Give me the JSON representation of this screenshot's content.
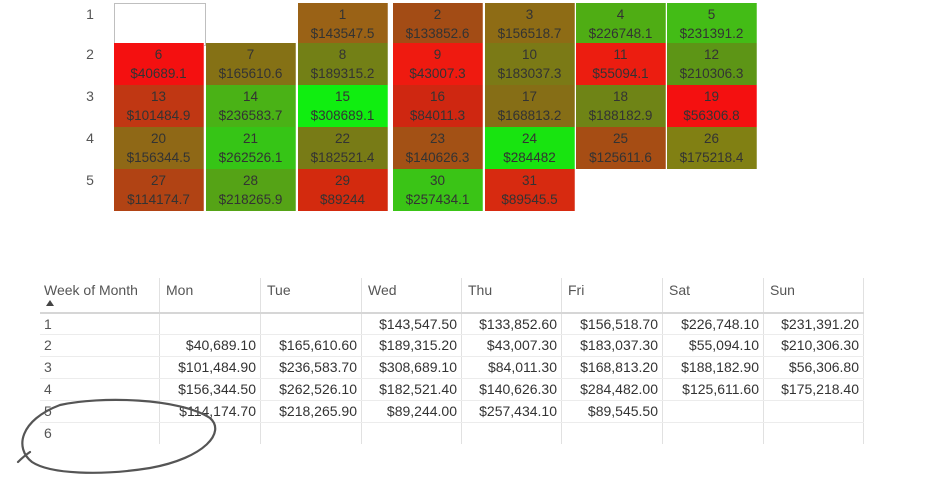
{
  "calendar": {
    "weeks": [
      {
        "label": "1",
        "days": [
          {
            "col": 0,
            "blank": true
          },
          {
            "col": 2,
            "day": "1",
            "amount": "$143547.5",
            "color": "#9a6216"
          },
          {
            "col": 3,
            "day": "2",
            "amount": "$133852.6",
            "color": "#a34c15"
          },
          {
            "col": 4,
            "day": "3",
            "amount": "$156518.7",
            "color": "#8e6c15"
          },
          {
            "col": 5,
            "day": "4",
            "amount": "$226748.1",
            "color": "#4fad14"
          },
          {
            "col": 6,
            "day": "5",
            "amount": "$231391.2",
            "color": "#43bc16"
          }
        ]
      },
      {
        "label": "2",
        "days": [
          {
            "col": 0,
            "day": "6",
            "amount": "$40689.1",
            "color": "#f41010"
          },
          {
            "col": 1,
            "day": "7",
            "amount": "$165610.6",
            "color": "#857115"
          },
          {
            "col": 2,
            "day": "8",
            "amount": "$189315.2",
            "color": "#738016"
          },
          {
            "col": 3,
            "day": "9",
            "amount": "$43007.3",
            "color": "#ef1a10"
          },
          {
            "col": 4,
            "day": "10",
            "amount": "$183037.3",
            "color": "#7b7a16"
          },
          {
            "col": 5,
            "day": "11",
            "amount": "$55094.1",
            "color": "#ec1d10"
          },
          {
            "col": 6,
            "day": "12",
            "amount": "$210306.3",
            "color": "#5d9516"
          }
        ]
      },
      {
        "label": "3",
        "days": [
          {
            "col": 0,
            "day": "13",
            "amount": "$101484.9",
            "color": "#c03713"
          },
          {
            "col": 1,
            "day": "14",
            "amount": "$236583.7",
            "color": "#4ab216"
          },
          {
            "col": 2,
            "day": "15",
            "amount": "$308689.1",
            "color": "#10ee10"
          },
          {
            "col": 3,
            "day": "16",
            "amount": "$84011.3",
            "color": "#cf2711"
          },
          {
            "col": 4,
            "day": "17",
            "amount": "$168813.2",
            "color": "#866e16"
          },
          {
            "col": 5,
            "day": "18",
            "amount": "$188182.9",
            "color": "#6f8416"
          },
          {
            "col": 6,
            "day": "19",
            "amount": "$56306.8",
            "color": "#f41010"
          }
        ]
      },
      {
        "label": "4",
        "days": [
          {
            "col": 0,
            "day": "20",
            "amount": "$156344.5",
            "color": "#8f6816"
          },
          {
            "col": 1,
            "day": "21",
            "amount": "$262526.1",
            "color": "#36c516"
          },
          {
            "col": 2,
            "day": "22",
            "amount": "$182521.4",
            "color": "#787b16"
          },
          {
            "col": 3,
            "day": "23",
            "amount": "$140626.3",
            "color": "#a35115"
          },
          {
            "col": 4,
            "day": "24",
            "amount": "$284482",
            "color": "#18e410"
          },
          {
            "col": 5,
            "day": "25",
            "amount": "$125611.6",
            "color": "#a64d14"
          },
          {
            "col": 6,
            "day": "26",
            "amount": "$175218.4",
            "color": "#818013"
          }
        ]
      },
      {
        "label": "5",
        "days": [
          {
            "col": 0,
            "day": "27",
            "amount": "$114174.7",
            "color": "#b14314"
          },
          {
            "col": 1,
            "day": "28",
            "amount": "$218265.9",
            "color": "#55a316"
          },
          {
            "col": 2,
            "day": "29",
            "amount": "$89244",
            "color": "#d32a0e"
          },
          {
            "col": 3,
            "day": "30",
            "amount": "$257434.1",
            "color": "#3ac416"
          },
          {
            "col": 4,
            "day": "31",
            "amount": "$89545.5",
            "color": "#d72a10"
          }
        ]
      }
    ]
  },
  "table": {
    "headers": [
      "Week of Month",
      "Mon",
      "Tue",
      "Wed",
      "Thu",
      "Fri",
      "Sat",
      "Sun"
    ],
    "sorted_column": "Week of Month",
    "rows": [
      {
        "label": "1",
        "values": [
          "",
          "",
          "$143,547.50",
          "$133,852.60",
          "$156,518.70",
          "$226,748.10",
          "$231,391.20"
        ]
      },
      {
        "label": "2",
        "values": [
          "$40,689.10",
          "$165,610.60",
          "$189,315.20",
          "$43,007.30",
          "$183,037.30",
          "$55,094.10",
          "$210,306.30"
        ]
      },
      {
        "label": "3",
        "values": [
          "$101,484.90",
          "$236,583.70",
          "$308,689.10",
          "$84,011.30",
          "$168,813.20",
          "$188,182.90",
          "$56,306.80"
        ]
      },
      {
        "label": "4",
        "values": [
          "$156,344.50",
          "$262,526.10",
          "$182,521.40",
          "$140,626.30",
          "$284,482.00",
          "$125,611.60",
          "$175,218.40"
        ]
      },
      {
        "label": "5",
        "values": [
          "$114,174.70",
          "$218,265.90",
          "$89,244.00",
          "$257,434.10",
          "$89,545.50",
          "",
          ""
        ]
      },
      {
        "label": "6",
        "values": [
          "",
          "",
          "",
          "",
          "",
          "",
          ""
        ]
      }
    ]
  },
  "annotation": {
    "stroke_color": "#555555"
  }
}
